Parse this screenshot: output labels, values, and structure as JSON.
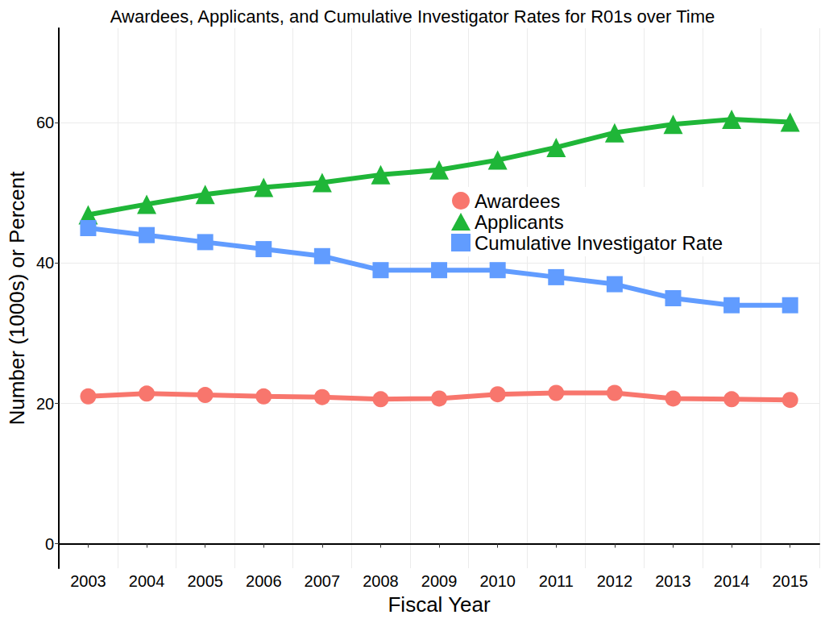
{
  "chart_data": {
    "type": "line",
    "title": "Awardees, Applicants, and Cumulative Investigator Rates for R01s over Time",
    "x_label": "Fiscal Year",
    "y_label": "Number (1000s) or Percent",
    "categories": [
      "2003",
      "2004",
      "2005",
      "2006",
      "2007",
      "2008",
      "2009",
      "2010",
      "2011",
      "2012",
      "2013",
      "2014",
      "2015"
    ],
    "series": [
      {
        "name": "Awardees",
        "color": "#F8766D",
        "marker": "circle",
        "values": [
          21.0,
          21.4,
          21.2,
          21.0,
          20.9,
          20.6,
          20.7,
          21.3,
          21.5,
          21.5,
          20.7,
          20.6,
          20.5
        ]
      },
      {
        "name": "Applicants",
        "color": "#1FB638",
        "marker": "triangle",
        "values": [
          46.9,
          48.4,
          49.8,
          50.8,
          51.5,
          52.6,
          53.3,
          54.7,
          56.5,
          58.6,
          59.8,
          60.5,
          60.1
        ]
      },
      {
        "name": "Cumulative Investigator Rate",
        "color": "#619CFF",
        "marker": "square",
        "values": [
          45,
          44,
          43,
          42,
          41,
          39,
          39,
          39,
          38,
          37,
          35,
          34,
          34
        ]
      }
    ],
    "ylim": [
      -3.5,
      73.5
    ],
    "yticks": [
      0,
      20,
      40,
      60
    ],
    "grid": true,
    "legend": "center"
  }
}
